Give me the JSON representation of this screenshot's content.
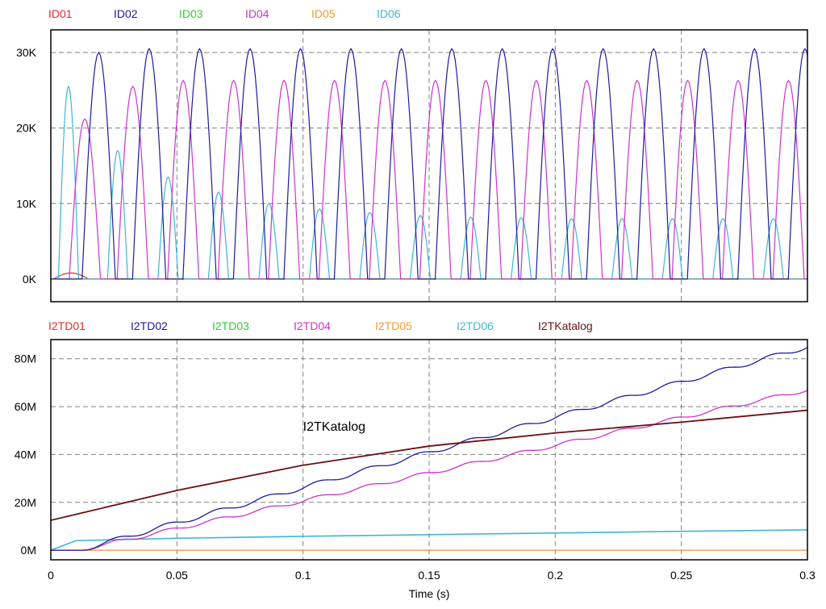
{
  "colors": {
    "01": "#e8292b",
    "02": "#1c1c9c",
    "03": "#33cc33",
    "04": "#cc33cc",
    "05": "#f39a2b",
    "06": "#3fb6d3",
    "katalog": "#6b1010"
  },
  "chart_data": [
    {
      "type": "line",
      "legend": [
        "ID01",
        "ID02",
        "ID03",
        "ID04",
        "ID05",
        "ID06"
      ],
      "legend_placement": "top",
      "xlim": [
        0,
        0.3
      ],
      "ylim": [
        -3000,
        33000
      ],
      "yticks": [
        0,
        10000,
        20000,
        30000
      ],
      "ytick_labels": [
        "0K",
        "10K",
        "20K",
        "30K"
      ],
      "grid": true,
      "period_s": 0.02,
      "series": [
        {
          "name": "ID02",
          "color_key": "02",
          "first_peak_s": 0.019,
          "first_peak_value": 30000,
          "peak_value": 30500
        },
        {
          "name": "ID04",
          "color_key": "04",
          "first_peak_s": 0.0325,
          "first_peak_value": 25500,
          "peak_value": 26300,
          "early_peak_s": 0.0135,
          "early_peak_value": 21200
        },
        {
          "name": "ID06",
          "color_key": "06",
          "peaks": [
            [
              0.007,
              25500
            ],
            [
              0.0265,
              17000
            ],
            [
              0.0465,
              13500
            ],
            [
              0.0665,
              11500
            ],
            [
              0.0865,
              10000
            ],
            [
              0.1065,
              9300
            ],
            [
              0.1265,
              8800
            ],
            [
              0.1465,
              8400
            ],
            [
              0.1665,
              8200
            ],
            [
              0.1865,
              8100
            ],
            [
              0.2065,
              8000
            ],
            [
              0.2265,
              8000
            ],
            [
              0.2465,
              8000
            ],
            [
              0.2665,
              8000
            ],
            [
              0.2865,
              8000
            ]
          ]
        },
        {
          "name": "ID01",
          "color_key": "01",
          "peaks": [
            [
              0.008,
              800
            ]
          ]
        },
        {
          "name": "ID03",
          "color_key": "03",
          "peaks": []
        },
        {
          "name": "ID05",
          "color_key": "05",
          "peaks": []
        }
      ]
    },
    {
      "type": "line",
      "legend": [
        "I2TD01",
        "I2TD02",
        "I2TD03",
        "I2TD04",
        "I2TD05",
        "I2TD06",
        "I2TKatalog"
      ],
      "legend_placement": "top",
      "xlabel": "Time (s)",
      "xlim": [
        0,
        0.3
      ],
      "xticks": [
        0,
        0.05,
        0.1,
        0.15,
        0.2,
        0.25,
        0.3
      ],
      "xtick_labels": [
        "0",
        "0.05",
        "0.1",
        "0.15",
        "0.2",
        "0.25",
        "0.3"
      ],
      "ylim": [
        -4000000,
        88000000
      ],
      "yticks": [
        0,
        20000000,
        40000000,
        60000000,
        80000000
      ],
      "ytick_labels": [
        "0M",
        "20M",
        "40M",
        "60M",
        "80M"
      ],
      "grid": true,
      "annotation": "I2TKatalog",
      "series": [
        {
          "name": "I2TKatalog",
          "color_key": "katalog",
          "points": [
            [
              0,
              12.5
            ],
            [
              0.05,
              25
            ],
            [
              0.1,
              35.5
            ],
            [
              0.15,
              43.5
            ],
            [
              0.2,
              49
            ],
            [
              0.25,
              53.5
            ],
            [
              0.3,
              58.5
            ]
          ]
        },
        {
          "name": "I2TD02",
          "color_key": "02",
          "start_s": 0.011,
          "start_value": 0,
          "end_value": 85,
          "step_period_s": 0.02
        },
        {
          "name": "I2TD04",
          "color_key": "04",
          "start_s": 0.011,
          "start_value": 0,
          "end_value": 67,
          "step_period_s": 0.02
        },
        {
          "name": "I2TD06",
          "color_key": "06",
          "points": [
            [
              0,
              0
            ],
            [
              0.01,
              4
            ],
            [
              0.05,
              5
            ],
            [
              0.1,
              5.8
            ],
            [
              0.15,
              6.5
            ],
            [
              0.2,
              7.2
            ],
            [
              0.25,
              7.9
            ],
            [
              0.3,
              8.5
            ]
          ]
        },
        {
          "name": "I2TD05",
          "color_key": "05",
          "points": [
            [
              0,
              0
            ],
            [
              0.3,
              0
            ]
          ]
        }
      ],
      "value_unit": "M"
    }
  ]
}
